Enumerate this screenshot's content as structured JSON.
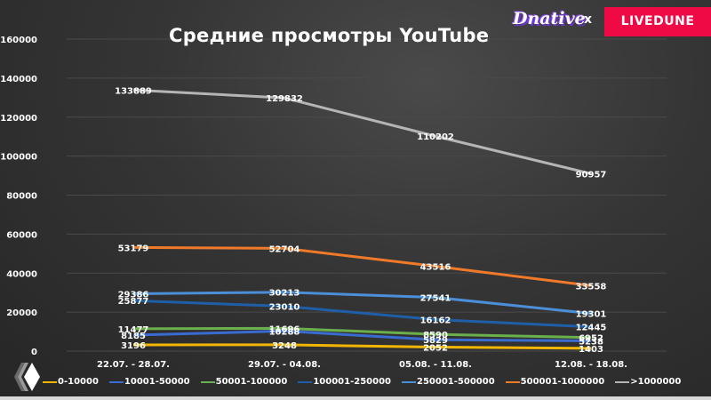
{
  "header": {
    "title": "Средние просмотры YouTube",
    "brand_left": "Dnative",
    "separator": "x",
    "brand_right": "LIVEDUNE",
    "brand_right_color": "#ef0a45"
  },
  "chart_data": {
    "type": "line",
    "title": "Средние просмотры YouTube",
    "xlabel": "",
    "ylabel": "",
    "ylim": [
      0,
      160000
    ],
    "yticks": [
      0,
      20000,
      40000,
      60000,
      80000,
      100000,
      120000,
      140000,
      160000
    ],
    "grid": true,
    "legend_position": "bottom",
    "categories": [
      "22.07. - 28.07.",
      "29.07. - 04.08.",
      "05.08. - 11.08.",
      "12.08. - 18.08."
    ],
    "series": [
      {
        "name": "0-10000",
        "color": "#f2b705",
        "values": [
          3196,
          3248,
          2052,
          1403
        ]
      },
      {
        "name": "10001-50000",
        "color": "#3a6bd1",
        "values": [
          8185,
          10288,
          5829,
          5238
        ]
      },
      {
        "name": "50001-100000",
        "color": "#6ab04c",
        "values": [
          11477,
          11696,
          8590,
          6952
        ]
      },
      {
        "name": "100001-250000",
        "color": "#1f5fa8",
        "values": [
          25877,
          23010,
          16162,
          12445
        ]
      },
      {
        "name": "250001-500000",
        "color": "#4a8fd8",
        "values": [
          29386,
          30213,
          27541,
          19301
        ]
      },
      {
        "name": "500001-1000000",
        "color": "#f07a2a",
        "values": [
          53179,
          52704,
          43516,
          33558
        ]
      },
      {
        "name": ">1000000",
        "color": "#b5b5b5",
        "values": [
          133889,
          129832,
          110202,
          90957
        ]
      }
    ]
  }
}
